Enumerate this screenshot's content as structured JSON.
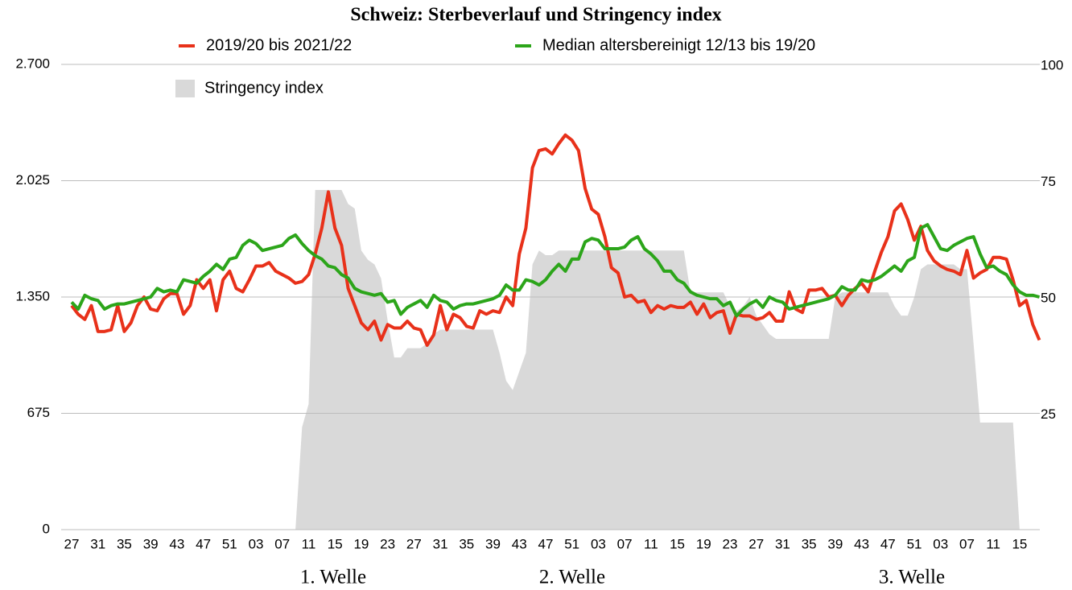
{
  "chart_data": {
    "type": "line",
    "title": "Schweiz: Sterbeverlauf und Stringency index",
    "categories": [
      "27",
      null,
      null,
      null,
      "31",
      null,
      null,
      null,
      "35",
      null,
      null,
      null,
      "39",
      null,
      null,
      null,
      "43",
      null,
      null,
      null,
      "47",
      null,
      null,
      null,
      "51",
      null,
      null,
      null,
      "03",
      null,
      null,
      null,
      "07",
      null,
      null,
      null,
      "11",
      null,
      null,
      null,
      "15",
      null,
      null,
      null,
      "19",
      null,
      null,
      null,
      "23",
      null,
      null,
      null,
      "27",
      null,
      null,
      null,
      "31",
      null,
      null,
      null,
      "35",
      null,
      null,
      null,
      "39",
      null,
      null,
      null,
      "43",
      null,
      null,
      null,
      "47",
      null,
      null,
      null,
      "51",
      null,
      null,
      null,
      "03",
      null,
      null,
      null,
      "07",
      null,
      null,
      null,
      "11",
      null,
      null,
      null,
      "15",
      null,
      null,
      null,
      "19",
      null,
      null,
      null,
      "23",
      null,
      null,
      null,
      "27",
      null,
      null,
      null,
      "31",
      null,
      null,
      null,
      "35",
      null,
      null,
      null,
      "39",
      null,
      null,
      null,
      "43",
      null,
      null,
      null,
      "47",
      null,
      null,
      null,
      "51",
      null,
      null,
      null,
      "03",
      null,
      null,
      null,
      "07",
      null,
      null,
      null,
      "11",
      null,
      null,
      null,
      "15",
      null,
      null,
      null
    ],
    "series": [
      {
        "name": "2019/20 bis 2021/22",
        "color": "#e8311a",
        "kind": "line",
        "values": [
          1300,
          1250,
          1220,
          1300,
          1150,
          1150,
          1160,
          1300,
          1150,
          1200,
          1300,
          1350,
          1280,
          1270,
          1340,
          1370,
          1370,
          1250,
          1300,
          1450,
          1400,
          1450,
          1270,
          1450,
          1500,
          1400,
          1380,
          1450,
          1530,
          1530,
          1550,
          1500,
          1480,
          1460,
          1430,
          1440,
          1480,
          1600,
          1750,
          1960,
          1750,
          1650,
          1400,
          1300,
          1200,
          1160,
          1210,
          1100,
          1190,
          1170,
          1170,
          1210,
          1170,
          1160,
          1070,
          1130,
          1300,
          1160,
          1250,
          1230,
          1180,
          1170,
          1270,
          1250,
          1270,
          1260,
          1350,
          1300,
          1600,
          1750,
          2100,
          2200,
          2210,
          2180,
          2240,
          2290,
          2260,
          2200,
          1980,
          1860,
          1830,
          1700,
          1520,
          1490,
          1350,
          1360,
          1320,
          1330,
          1260,
          1300,
          1280,
          1300,
          1290,
          1290,
          1320,
          1250,
          1310,
          1230,
          1260,
          1270,
          1140,
          1250,
          1240,
          1240,
          1220,
          1230,
          1260,
          1210,
          1210,
          1380,
          1280,
          1260,
          1390,
          1390,
          1400,
          1350,
          1360,
          1300,
          1360,
          1400,
          1430,
          1380,
          1500,
          1610,
          1700,
          1850,
          1890,
          1800,
          1680,
          1760,
          1620,
          1560,
          1530,
          1510,
          1500,
          1480,
          1620,
          1460,
          1490,
          1510,
          1580,
          1580,
          1570,
          1450,
          1300,
          1330,
          1190,
          1100
        ]
      },
      {
        "name": "Median altersbereinigt 12/13 bis 19/20",
        "color": "#2ca51a",
        "kind": "line",
        "values": [
          1320,
          1280,
          1360,
          1340,
          1330,
          1280,
          1300,
          1310,
          1310,
          1320,
          1330,
          1340,
          1350,
          1400,
          1380,
          1390,
          1380,
          1450,
          1440,
          1430,
          1470,
          1500,
          1540,
          1510,
          1570,
          1580,
          1650,
          1680,
          1660,
          1620,
          1630,
          1640,
          1650,
          1690,
          1710,
          1660,
          1620,
          1590,
          1570,
          1530,
          1520,
          1480,
          1460,
          1400,
          1380,
          1370,
          1360,
          1370,
          1320,
          1330,
          1250,
          1290,
          1310,
          1330,
          1290,
          1360,
          1330,
          1320,
          1280,
          1300,
          1310,
          1310,
          1320,
          1330,
          1340,
          1360,
          1420,
          1390,
          1390,
          1450,
          1440,
          1420,
          1450,
          1500,
          1540,
          1500,
          1570,
          1570,
          1670,
          1690,
          1680,
          1630,
          1630,
          1630,
          1640,
          1680,
          1700,
          1630,
          1600,
          1560,
          1500,
          1500,
          1450,
          1430,
          1380,
          1360,
          1350,
          1340,
          1340,
          1300,
          1320,
          1240,
          1280,
          1310,
          1330,
          1290,
          1350,
          1330,
          1320,
          1280,
          1290,
          1300,
          1310,
          1320,
          1330,
          1340,
          1360,
          1410,
          1390,
          1390,
          1450,
          1440,
          1450,
          1470,
          1500,
          1530,
          1500,
          1560,
          1580,
          1750,
          1770,
          1700,
          1630,
          1620,
          1650,
          1670,
          1690,
          1700,
          1600,
          1520,
          1530,
          1500,
          1480,
          1420,
          1380,
          1360,
          1360,
          1350
        ]
      },
      {
        "name": "Stringency index",
        "color": "#d9d9d9",
        "kind": "area",
        "axis": "y2",
        "values": [
          0,
          0,
          0,
          0,
          0,
          0,
          0,
          0,
          0,
          0,
          0,
          0,
          0,
          0,
          0,
          0,
          0,
          0,
          0,
          0,
          0,
          0,
          0,
          0,
          0,
          0,
          0,
          0,
          0,
          0,
          0,
          0,
          0,
          0,
          0,
          22,
          27,
          73,
          73,
          73,
          73,
          73,
          70,
          69,
          60,
          58,
          57,
          54,
          45,
          37,
          37,
          39,
          39,
          39,
          40,
          42,
          43,
          43,
          43,
          43,
          43,
          43,
          43,
          43,
          43,
          38,
          32,
          30,
          34,
          38,
          57,
          60,
          59,
          59,
          60,
          60,
          60,
          60,
          60,
          60,
          60,
          60,
          60,
          60,
          60,
          60,
          60,
          60,
          60,
          60,
          60,
          60,
          60,
          60,
          51,
          51,
          51,
          51,
          51,
          51,
          48,
          47,
          48,
          50,
          46,
          44,
          42,
          41,
          41,
          41,
          41,
          41,
          41,
          41,
          41,
          41,
          50,
          51,
          51,
          51,
          51,
          51,
          51,
          51,
          51,
          48,
          46,
          46,
          50,
          56,
          57,
          57,
          57,
          57,
          57,
          56,
          56,
          40,
          23,
          23,
          23,
          23,
          23,
          23,
          0,
          0,
          0,
          0
        ]
      }
    ],
    "ylim": [
      0,
      2700
    ],
    "yticks": [
      0,
      675,
      {
        "value": 1350,
        "label": "1.350"
      },
      {
        "value": 2025,
        "label": "2.025"
      },
      {
        "value": 2700,
        "label": "2.700"
      }
    ],
    "y2lim": [
      0,
      100
    ],
    "y2ticks": [
      25,
      50,
      75,
      100
    ],
    "grid": true,
    "legend": "top",
    "annotations": [
      "1. Welle",
      "2. Welle",
      "3. Welle"
    ]
  }
}
